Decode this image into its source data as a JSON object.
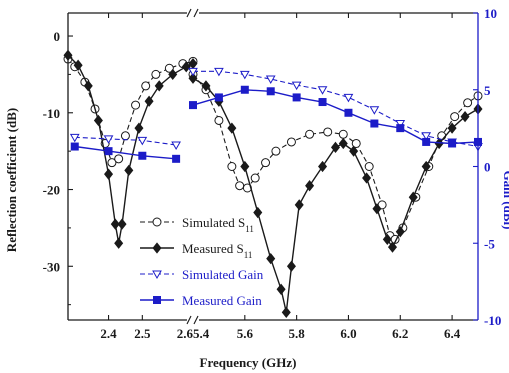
{
  "chart_data": {
    "type": "line",
    "title": "",
    "xlabel": "Frequency (GHz)",
    "ylabel_left": "Reflection coefficient (dB)",
    "ylabel_right": "Gain (dBi)",
    "x_segments": [
      {
        "range": [
          2.28,
          2.65
        ],
        "ticks": [
          2.4,
          2.5
        ],
        "tick_labels": [
          "2.4",
          "2.5"
        ]
      },
      {
        "range": [
          5.4,
          6.5
        ],
        "ticks": [
          5.6,
          5.8,
          6.0,
          6.2,
          6.4
        ],
        "tick_labels": [
          "5.6",
          "5.8",
          "6.0",
          "6.2",
          "6.4"
        ]
      }
    ],
    "break_tick_label": "2.65.4",
    "ylim_left": [
      -37,
      3
    ],
    "yticks_left": [
      0,
      -10,
      -20,
      -30
    ],
    "ytick_labels_left": [
      "0",
      "-10",
      "-20",
      "-30"
    ],
    "ylim_right": [
      -10,
      10
    ],
    "yticks_right": [
      10,
      5,
      0,
      -5,
      -10
    ],
    "ytick_labels_right": [
      "10",
      "5",
      "0",
      "-5",
      "-10"
    ],
    "legend_position": "bottom-left",
    "colors": {
      "s11": "#1a1a1a",
      "gain": "#1c1cc8",
      "frame_right": "#1c1cc8"
    },
    "series": [
      {
        "name": "Simulated S11",
        "name_base": "Simulated S",
        "name_sub": "11",
        "axis": "left",
        "style": "dashed",
        "marker": "circle-open",
        "color": "#1a1a1a",
        "segments": [
          [
            [
              2.28,
              -3.0
            ],
            [
              2.3,
              -4.0
            ],
            [
              2.33,
              -6.0
            ],
            [
              2.36,
              -9.5
            ],
            [
              2.39,
              -14.0
            ],
            [
              2.41,
              -16.5
            ],
            [
              2.43,
              -16.0
            ],
            [
              2.45,
              -13.0
            ],
            [
              2.48,
              -9.0
            ],
            [
              2.51,
              -6.5
            ],
            [
              2.54,
              -5.0
            ],
            [
              2.58,
              -4.2
            ],
            [
              2.62,
              -3.6
            ],
            [
              2.65,
              -3.3
            ]
          ],
          [
            [
              5.4,
              -5.0
            ],
            [
              5.45,
              -7.0
            ],
            [
              5.5,
              -11.0
            ],
            [
              5.55,
              -17.0
            ],
            [
              5.58,
              -19.5
            ],
            [
              5.61,
              -19.8
            ],
            [
              5.64,
              -18.5
            ],
            [
              5.68,
              -16.5
            ],
            [
              5.72,
              -15.0
            ],
            [
              5.78,
              -13.8
            ],
            [
              5.85,
              -12.8
            ],
            [
              5.92,
              -12.5
            ],
            [
              5.98,
              -12.8
            ],
            [
              6.03,
              -14.0
            ],
            [
              6.08,
              -17.0
            ],
            [
              6.13,
              -22.0
            ],
            [
              6.16,
              -26.0
            ],
            [
              6.18,
              -26.5
            ],
            [
              6.21,
              -25.0
            ],
            [
              6.26,
              -21.0
            ],
            [
              6.31,
              -17.0
            ],
            [
              6.36,
              -13.0
            ],
            [
              6.41,
              -10.5
            ],
            [
              6.46,
              -8.7
            ],
            [
              6.5,
              -7.8
            ]
          ]
        ]
      },
      {
        "name": "Measured S11",
        "name_base": "Measured S",
        "name_sub": "11",
        "axis": "left",
        "style": "solid",
        "marker": "diamond-filled",
        "color": "#1a1a1a",
        "segments": [
          [
            [
              2.28,
              -2.5
            ],
            [
              2.31,
              -3.8
            ],
            [
              2.34,
              -6.5
            ],
            [
              2.37,
              -11.0
            ],
            [
              2.4,
              -18.0
            ],
            [
              2.42,
              -24.5
            ],
            [
              2.43,
              -27.0
            ],
            [
              2.44,
              -24.5
            ],
            [
              2.46,
              -17.5
            ],
            [
              2.49,
              -12.0
            ],
            [
              2.52,
              -8.5
            ],
            [
              2.55,
              -6.5
            ],
            [
              2.59,
              -5.0
            ],
            [
              2.63,
              -4.0
            ],
            [
              2.65,
              -3.6
            ]
          ],
          [
            [
              5.4,
              -5.5
            ],
            [
              5.45,
              -6.5
            ],
            [
              5.5,
              -8.5
            ],
            [
              5.55,
              -12.0
            ],
            [
              5.6,
              -17.0
            ],
            [
              5.65,
              -23.0
            ],
            [
              5.7,
              -29.0
            ],
            [
              5.74,
              -33.0
            ],
            [
              5.76,
              -36.0
            ],
            [
              5.78,
              -30.0
            ],
            [
              5.81,
              -22.0
            ],
            [
              5.85,
              -19.5
            ],
            [
              5.9,
              -17.0
            ],
            [
              5.95,
              -14.5
            ],
            [
              5.98,
              -14.0
            ],
            [
              6.02,
              -15.0
            ],
            [
              6.07,
              -18.5
            ],
            [
              6.11,
              -22.5
            ],
            [
              6.15,
              -26.5
            ],
            [
              6.17,
              -27.5
            ],
            [
              6.2,
              -25.5
            ],
            [
              6.25,
              -21.0
            ],
            [
              6.3,
              -17.0
            ],
            [
              6.35,
              -14.0
            ],
            [
              6.4,
              -12.0
            ],
            [
              6.45,
              -10.5
            ],
            [
              6.5,
              -9.5
            ]
          ]
        ]
      },
      {
        "name": "Simulated Gain",
        "name_base": "Simulated Gain",
        "name_sub": "",
        "axis": "right",
        "style": "dashed",
        "marker": "triangle-down-open",
        "color": "#1c1cc8",
        "segments": [
          [
            [
              2.3,
              1.9
            ],
            [
              2.4,
              1.8
            ],
            [
              2.5,
              1.7
            ],
            [
              2.6,
              1.4
            ]
          ],
          [
            [
              5.4,
              6.2
            ],
            [
              5.5,
              6.2
            ],
            [
              5.6,
              6.0
            ],
            [
              5.7,
              5.7
            ],
            [
              5.8,
              5.3
            ],
            [
              5.9,
              5.0
            ],
            [
              6.0,
              4.5
            ],
            [
              6.1,
              3.7
            ],
            [
              6.2,
              2.8
            ],
            [
              6.3,
              2.0
            ],
            [
              6.4,
              1.6
            ],
            [
              6.5,
              1.3
            ]
          ]
        ]
      },
      {
        "name": "Measured Gain",
        "name_base": "Measured Gain",
        "name_sub": "",
        "axis": "right",
        "style": "solid",
        "marker": "square-filled",
        "color": "#1c1cc8",
        "segments": [
          [
            [
              2.3,
              1.3
            ],
            [
              2.4,
              1.0
            ],
            [
              2.5,
              0.7
            ],
            [
              2.6,
              0.5
            ]
          ],
          [
            [
              5.4,
              4.0
            ],
            [
              5.5,
              4.5
            ],
            [
              5.6,
              5.0
            ],
            [
              5.7,
              4.9
            ],
            [
              5.8,
              4.5
            ],
            [
              5.9,
              4.2
            ],
            [
              6.0,
              3.5
            ],
            [
              6.1,
              2.8
            ],
            [
              6.2,
              2.5
            ],
            [
              6.3,
              1.6
            ],
            [
              6.4,
              1.5
            ],
            [
              6.5,
              1.6
            ]
          ]
        ]
      }
    ]
  }
}
